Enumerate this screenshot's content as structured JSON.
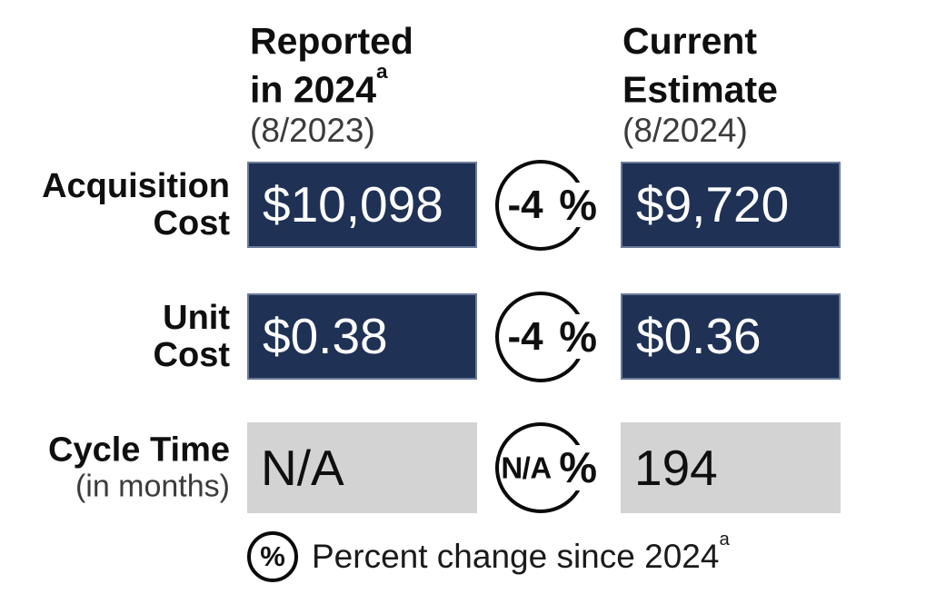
{
  "percent_symbol": "%",
  "columns": [
    {
      "line1": "Reported",
      "line2": "in 2024",
      "sup": "a",
      "subtitle": "(8/2023)"
    },
    {
      "line1": "Current",
      "line2": "Estimate",
      "sup": "",
      "subtitle": "(8/2024)"
    }
  ],
  "rows": [
    {
      "label": "Acquisition\nCost",
      "note": "",
      "reported": "$10,098",
      "change": "-4",
      "estimate": "$9,720"
    },
    {
      "label": "Unit\nCost",
      "note": "",
      "reported": "$0.38",
      "change": "-4",
      "estimate": "$0.36"
    },
    {
      "label": "Cycle Time",
      "note": "(in months)",
      "reported": "N/A",
      "change": "N/A",
      "estimate": "194"
    }
  ],
  "legend": {
    "symbol": "%",
    "text": "Percent change since 2024",
    "sup": "a"
  },
  "colors": {
    "navy": "#1F3155",
    "gray": "#D3D3D3",
    "ink": "#0f0f0f",
    "muted": "#3b3b3b",
    "box-border": "#6b7a99"
  },
  "chart_data": {
    "type": "table",
    "title": "",
    "columns": [
      "Reported in 2024a (8/2023)",
      "Percent change since 2024a",
      "Current Estimate (8/2024)"
    ],
    "rows": [
      {
        "label": "Acquisition Cost",
        "reported_in_2024": "$10,098",
        "percent_change": "-4%",
        "current_estimate": "$9,720"
      },
      {
        "label": "Unit Cost",
        "reported_in_2024": "$0.38",
        "percent_change": "-4%",
        "current_estimate": "$0.36"
      },
      {
        "label": "Cycle Time (in months)",
        "reported_in_2024": "N/A",
        "percent_change": "N/A%",
        "current_estimate": "194"
      }
    ],
    "footnote": "Percent change since 2024a",
    "layout": {
      "value_box_dark_rows": [
        0,
        1
      ],
      "value_box_gray_rows": [
        2
      ],
      "change_shown_in_circles": true
    }
  }
}
